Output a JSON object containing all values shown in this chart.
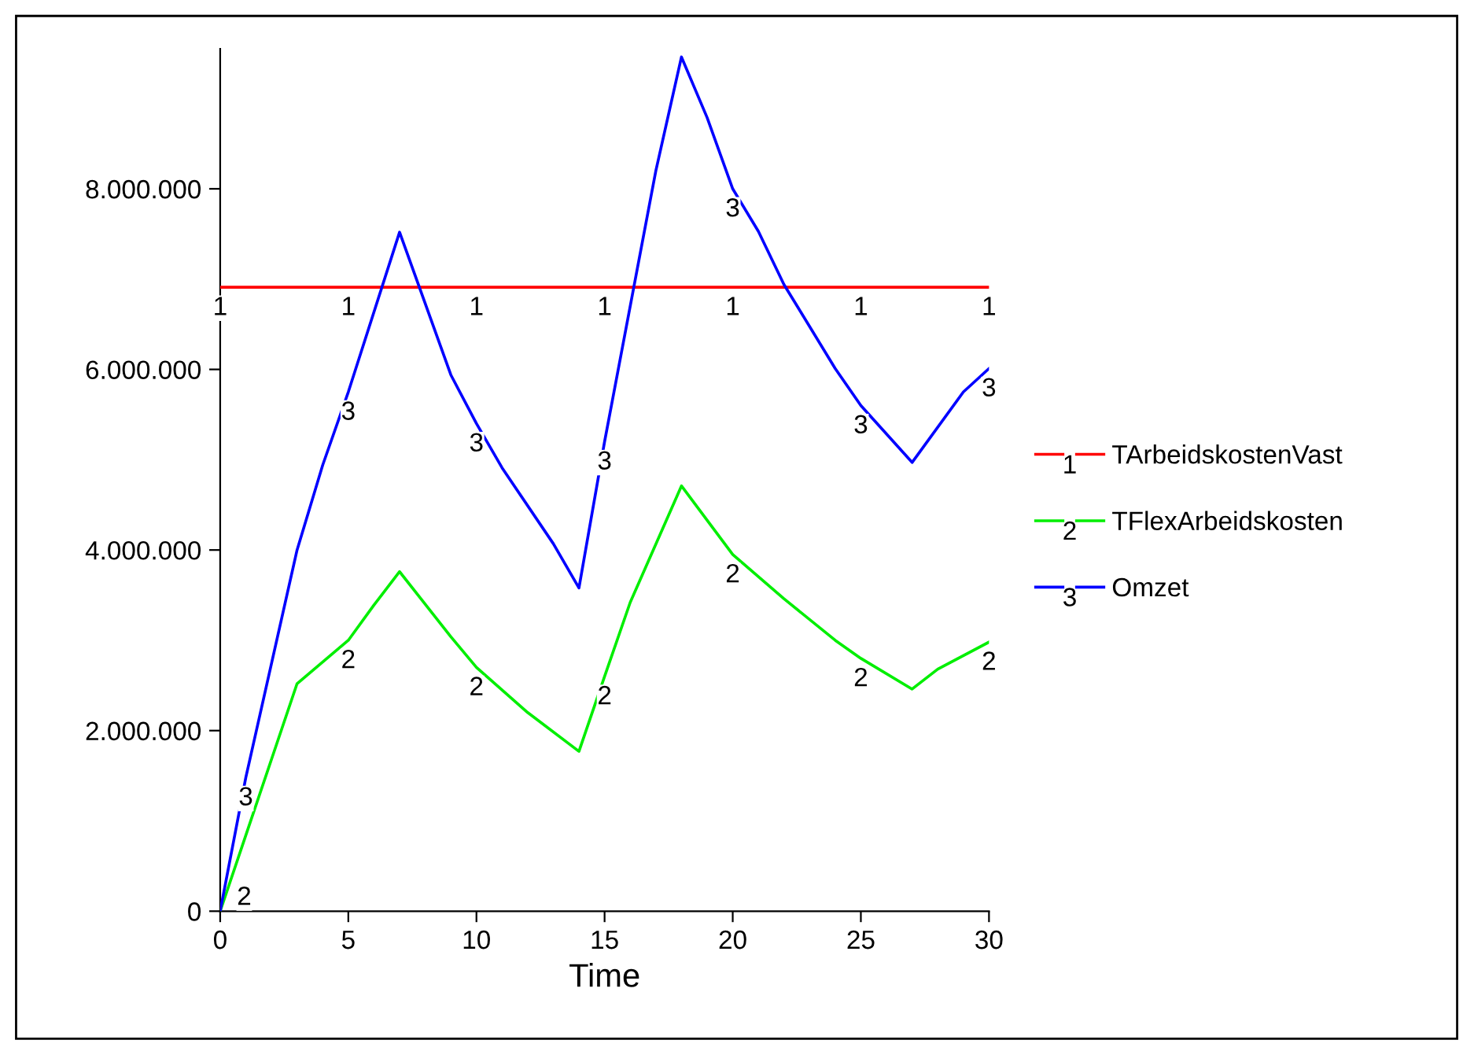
{
  "chart_data": {
    "type": "line",
    "xlabel": "Time",
    "xlim": [
      0,
      30
    ],
    "xticks": [
      0,
      5,
      10,
      15,
      20,
      25,
      30
    ],
    "ylim": [
      0,
      9550000
    ],
    "yticks": [
      {
        "value": 0,
        "label": "0"
      },
      {
        "value": 2000000,
        "label": "2.000.000"
      },
      {
        "value": 4000000,
        "label": "4.000.000"
      },
      {
        "value": 6000000,
        "label": "6.000.000"
      },
      {
        "value": 8000000,
        "label": "8.000.000"
      }
    ],
    "grid": false,
    "legend": "right",
    "line_style": "solid",
    "annotations": [
      {
        "text": "1",
        "x": 0,
        "y": 6910000
      },
      {
        "text": "2",
        "x": 0,
        "y": 0
      },
      {
        "text": "3",
        "x": 1,
        "y": 1480000
      },
      {
        "text": "1",
        "x": 5,
        "y": 6910000
      },
      {
        "text": "1",
        "x": 10,
        "y": 6910000
      },
      {
        "text": "1",
        "x": 15,
        "y": 6910000
      },
      {
        "text": "1",
        "x": 20,
        "y": 6910000
      },
      {
        "text": "1",
        "x": 25,
        "y": 6910000
      },
      {
        "text": "1",
        "x": 30,
        "y": 6910000
      },
      {
        "text": "2",
        "x": 5,
        "y": 3000000
      },
      {
        "text": "2",
        "x": 10,
        "y": 2700000
      },
      {
        "text": "2",
        "x": 15,
        "y": 2600000
      },
      {
        "text": "2",
        "x": 20,
        "y": 3950000
      },
      {
        "text": "2",
        "x": 25,
        "y": 2800000
      },
      {
        "text": "2",
        "x": 30,
        "y": 2980000
      },
      {
        "text": "3",
        "x": 5,
        "y": 5750000
      },
      {
        "text": "3",
        "x": 10,
        "y": 5400000
      },
      {
        "text": "3",
        "x": 15,
        "y": 5200000
      },
      {
        "text": "3",
        "x": 20,
        "y": 8000000
      },
      {
        "text": "3",
        "x": 25,
        "y": 5600000
      },
      {
        "text": "3",
        "x": 30,
        "y": 6010000
      }
    ],
    "series": [
      {
        "name": "TArbeidskostenVast",
        "color": "#ff0000",
        "x": [
          0,
          5,
          10,
          15,
          20,
          25,
          30
        ],
        "values": [
          6910000,
          6910000,
          6910000,
          6910000,
          6910000,
          6910000,
          6910000
        ]
      },
      {
        "name": "TFlexArbeidskosten",
        "color": "#00ee00",
        "x": [
          0,
          1,
          3,
          5,
          6,
          7,
          9,
          10,
          12,
          14,
          15,
          16,
          18,
          20,
          22,
          24,
          25,
          27,
          28,
          30
        ],
        "values": [
          0,
          840000,
          2520000,
          3000000,
          3390000,
          3760000,
          3040000,
          2700000,
          2200000,
          1770000,
          2600000,
          3420000,
          4710000,
          3950000,
          3460000,
          3000000,
          2800000,
          2460000,
          2680000,
          2980000
        ]
      },
      {
        "name": "Omzet",
        "color": "#0000ff",
        "x": [
          0,
          1,
          3,
          4,
          5,
          7,
          9,
          10,
          11,
          13,
          14,
          15,
          17,
          18,
          19,
          20,
          21,
          22,
          24,
          25,
          27,
          29,
          30
        ],
        "values": [
          0,
          1480000,
          4000000,
          4940000,
          5750000,
          7520000,
          5940000,
          5400000,
          4910000,
          4070000,
          3580000,
          5200000,
          8200000,
          9460000,
          8790000,
          8000000,
          7530000,
          6940000,
          6010000,
          5600000,
          4970000,
          5750000,
          6010000
        ]
      }
    ]
  }
}
